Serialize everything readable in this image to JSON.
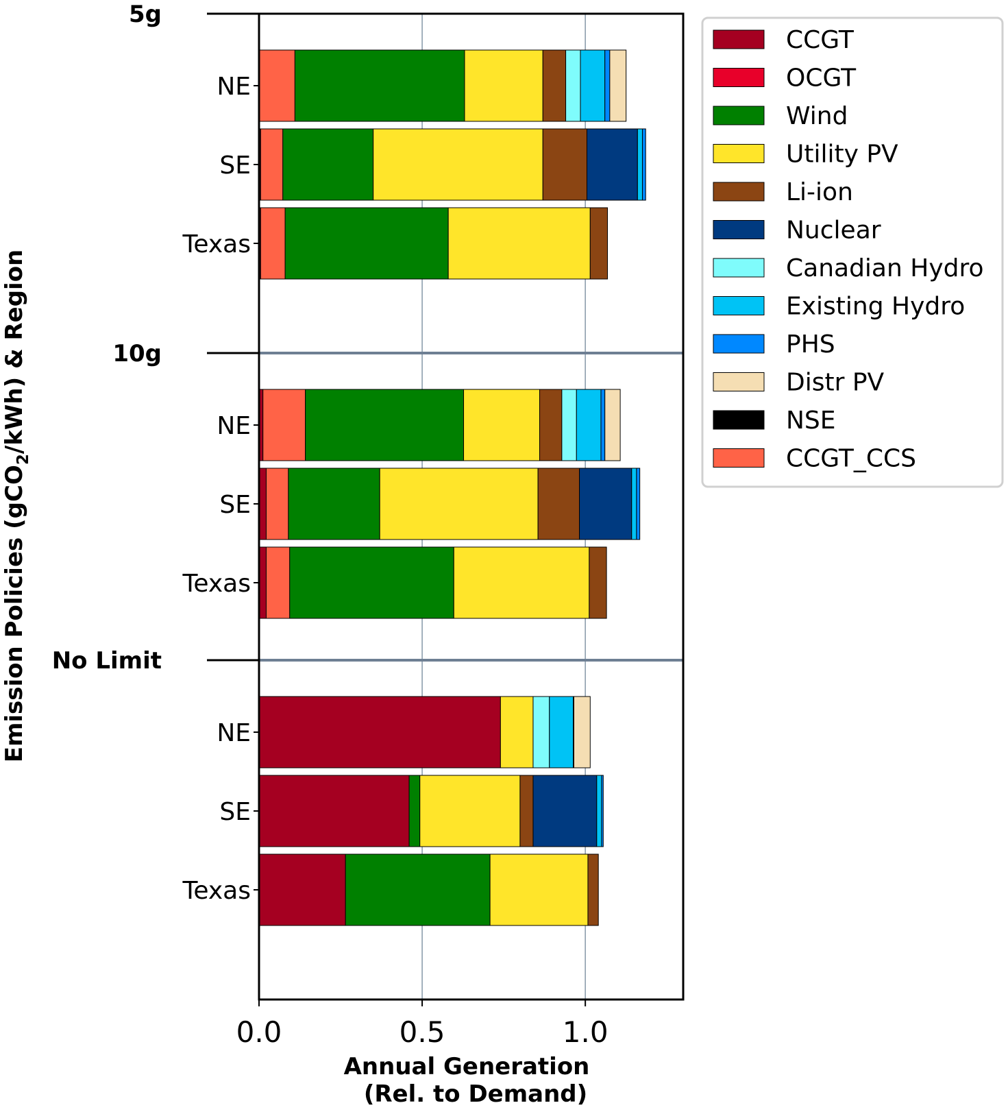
{
  "chart_data": {
    "type": "bar",
    "orientation": "horizontal",
    "stacked": true,
    "title": "",
    "ylabel": {
      "before_sub": "Emission Policies (gCO",
      "sub": "2",
      "after_sub": "/kWh) & Region"
    },
    "xlabel": {
      "line1": "Annual Generation",
      "line2": "(Rel. to Demand)"
    },
    "xlim": [
      0.0,
      1.3
    ],
    "xticks": [
      {
        "value": 0.0,
        "label": "0.0"
      },
      {
        "value": 0.5,
        "label": "0.5"
      },
      {
        "value": 1.0,
        "label": "1.0"
      }
    ],
    "grid": "vertical",
    "legend_position": "outside-right-top",
    "groups": [
      {
        "label": "5g"
      },
      {
        "label": "10g"
      },
      {
        "label": "No Limit"
      }
    ],
    "series": [
      {
        "name": "CCGT",
        "color": "#a50021"
      },
      {
        "name": "OCGT",
        "color": "#e8002a"
      },
      {
        "name": "Wind",
        "color": "#008000"
      },
      {
        "name": "Utility PV",
        "color": "#ffe52a"
      },
      {
        "name": "Li-ion",
        "color": "#8b4513"
      },
      {
        "name": "Nuclear",
        "color": "#003a80"
      },
      {
        "name": "Canadian Hydro",
        "color": "#7ffcfc"
      },
      {
        "name": "Existing Hydro",
        "color": "#00c3f5"
      },
      {
        "name": "PHS",
        "color": "#0088ff"
      },
      {
        "name": "Distr PV",
        "color": "#f5deb3"
      },
      {
        "name": "NSE",
        "color": "#000000"
      },
      {
        "name": "CCGT_CCS",
        "color": "#ff6347"
      }
    ],
    "bars": [
      {
        "group": 0,
        "region": "NE",
        "values": {
          "CCGT_CCS": 0.11,
          "Wind": 0.52,
          "Utility PV": 0.24,
          "Li-ion": 0.07,
          "Canadian Hydro": 0.045,
          "Existing Hydro": 0.075,
          "PHS": 0.015,
          "Distr PV": 0.05
        }
      },
      {
        "group": 0,
        "region": "SE",
        "values": {
          "CCGT": 0.005,
          "CCGT_CCS": 0.068,
          "Wind": 0.277,
          "Utility PV": 0.52,
          "Li-ion": 0.135,
          "Nuclear": 0.155,
          "Existing Hydro": 0.015,
          "PHS": 0.01
        }
      },
      {
        "group": 0,
        "region": "Texas",
        "values": {
          "CCGT": 0.005,
          "CCGT_CCS": 0.075,
          "Wind": 0.5,
          "Utility PV": 0.435,
          "Li-ion": 0.053
        }
      },
      {
        "group": 1,
        "region": "NE",
        "values": {
          "CCGT": 0.012,
          "CCGT_CCS": 0.13,
          "Wind": 0.485,
          "Utility PV": 0.233,
          "Li-ion": 0.068,
          "Canadian Hydro": 0.045,
          "Existing Hydro": 0.075,
          "PHS": 0.012,
          "Distr PV": 0.047
        }
      },
      {
        "group": 1,
        "region": "SE",
        "values": {
          "CCGT": 0.022,
          "CCGT_CCS": 0.068,
          "Wind": 0.28,
          "Utility PV": 0.485,
          "Li-ion": 0.127,
          "Nuclear": 0.16,
          "Existing Hydro": 0.015,
          "PHS": 0.01
        }
      },
      {
        "group": 1,
        "region": "Texas",
        "values": {
          "CCGT": 0.022,
          "CCGT_CCS": 0.072,
          "Wind": 0.503,
          "Utility PV": 0.415,
          "Li-ion": 0.053
        }
      },
      {
        "group": 2,
        "region": "NE",
        "values": {
          "CCGT": 0.74,
          "Utility PV": 0.1,
          "Canadian Hydro": 0.05,
          "Existing Hydro": 0.073,
          "PHS": 0.002,
          "Distr PV": 0.05
        }
      },
      {
        "group": 2,
        "region": "SE",
        "values": {
          "CCGT": 0.46,
          "Wind": 0.033,
          "Utility PV": 0.307,
          "Li-ion": 0.04,
          "Nuclear": 0.195,
          "Existing Hydro": 0.015,
          "PHS": 0.005
        }
      },
      {
        "group": 2,
        "region": "Texas",
        "values": {
          "CCGT": 0.265,
          "Wind": 0.443,
          "Utility PV": 0.3,
          "Li-ion": 0.032
        }
      }
    ]
  }
}
